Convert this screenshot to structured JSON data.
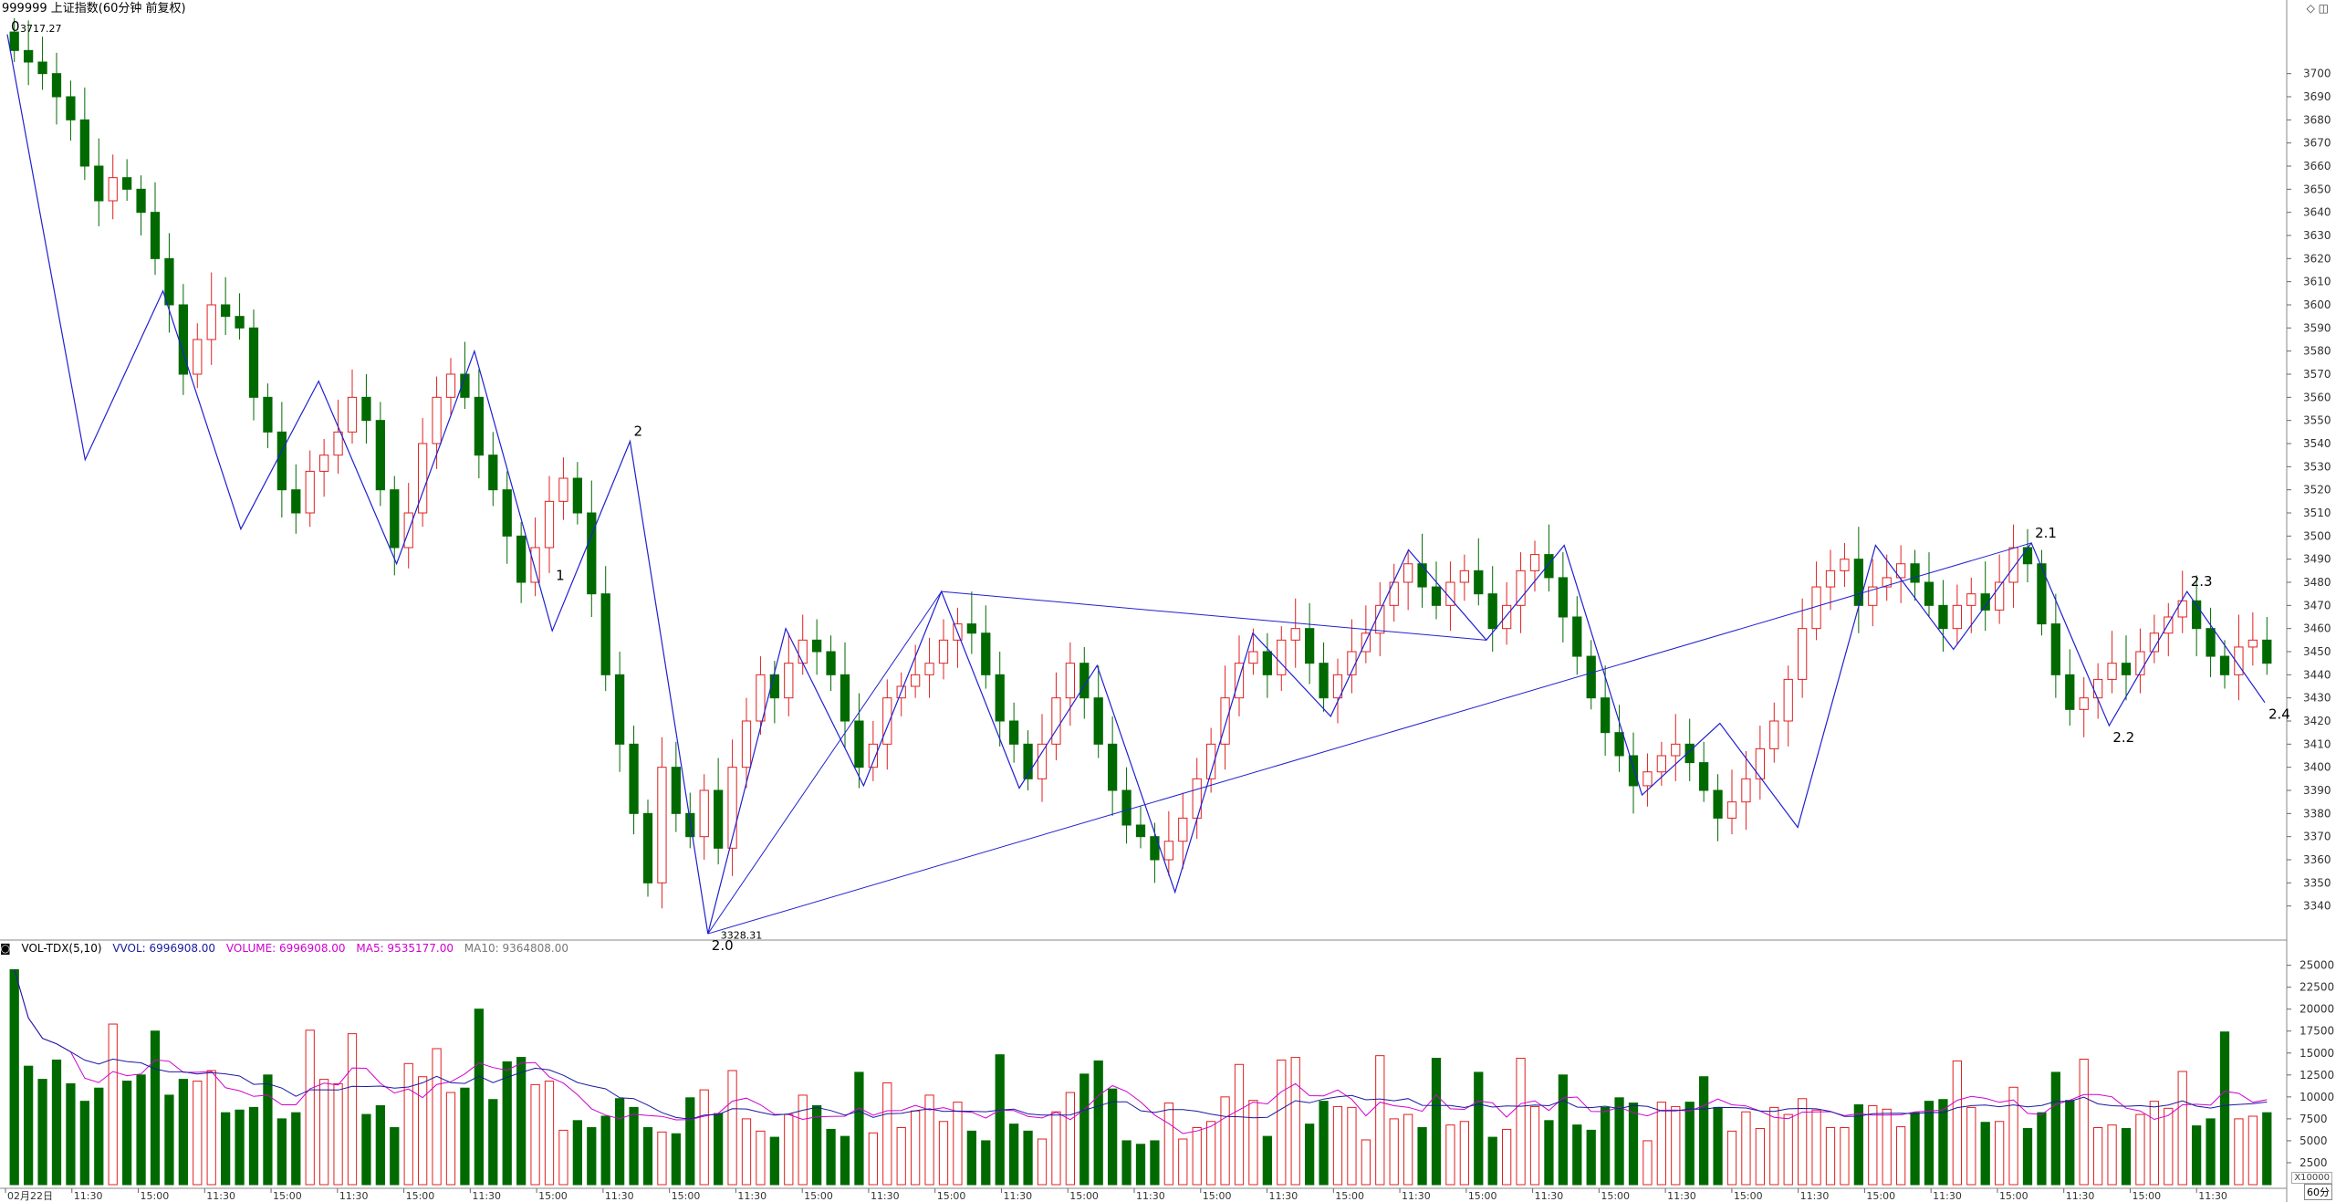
{
  "header": {
    "title": "999999 上证指数(60分钟 前复权)",
    "window_buttons": "◇ ◫"
  },
  "volume_panel": {
    "indicator": "VOL-TDX(5,10)",
    "vvol": "VVOL: 6996908.00",
    "volume": "VOLUME: 6996908.00",
    "ma5": "MA5: 9535177.00",
    "ma10": "MA10: 9364808.00",
    "scale_label": "X10000",
    "colors": {
      "vvol": "#1a1aa0",
      "volume": "#d000d0",
      "ma5": "#d000d0",
      "ma10": "#777777"
    }
  },
  "footer": {
    "period": "60分"
  },
  "colors": {
    "up": "#e02020",
    "down": "#006a00",
    "wave": "#2020d0",
    "box": "#cccccc"
  },
  "chart_data": [
    {
      "type": "candlestick",
      "title": "999999 上证指数(60分钟 前复权)",
      "ylim": [
        3330,
        3720
      ],
      "yticks": [
        3340,
        3350,
        3360,
        3370,
        3380,
        3390,
        3400,
        3410,
        3420,
        3430,
        3440,
        3450,
        3460,
        3470,
        3480,
        3490,
        3500,
        3510,
        3520,
        3530,
        3540,
        3550,
        3560,
        3570,
        3580,
        3590,
        3600,
        3610,
        3620,
        3630,
        3640,
        3650,
        3660,
        3670,
        3680,
        3690,
        3700
      ],
      "x_tick_labels": [
        "02月22日",
        "11:30",
        "15:00",
        "11:30",
        "15:00",
        "11:30",
        "15:00",
        "11:30",
        "15:00",
        "11:30",
        "15:00",
        "11:30",
        "15:00",
        "11:30",
        "15:00",
        "11:30",
        "15:00",
        "11:30",
        "15:00",
        "11:30",
        "15:00",
        "11:30",
        "15:00",
        "11:30",
        "15:00",
        "11:30",
        "15:00",
        "11:30",
        "15:00",
        "11:30",
        "15:00",
        "11:30",
        "15:00",
        "11:30"
      ],
      "annotations": [
        {
          "text": "3717.27",
          "price": 3717.27
        },
        {
          "text": "3328.31",
          "price": 3328.31
        }
      ],
      "wave_labels": [
        {
          "text": "0",
          "price": 3716
        },
        {
          "text": "1",
          "price": 3488
        },
        {
          "text": "2",
          "price": 3541
        },
        {
          "text": "2.0",
          "price": 3328
        },
        {
          "text": "2.1",
          "price": 3497
        },
        {
          "text": "2.2",
          "price": 3418
        },
        {
          "text": "2.3",
          "price": 3476
        },
        {
          "text": "2.4",
          "price": 3428
        }
      ],
      "wave_path": [
        3717,
        3533,
        3606,
        3503,
        3567,
        3488,
        3580,
        3459,
        3541,
        3328,
        3460,
        3392,
        3476,
        3391,
        3444,
        3346,
        3458,
        3422,
        3494,
        3455,
        3496,
        3388,
        3419,
        3374,
        3496,
        3451,
        3497,
        3418,
        3476,
        3428
      ],
      "closes": [
        3710,
        3705,
        3700,
        3690,
        3680,
        3660,
        3645,
        3655,
        3650,
        3640,
        3620,
        3600,
        3570,
        3585,
        3600,
        3595,
        3590,
        3560,
        3545,
        3520,
        3510,
        3528,
        3535,
        3545,
        3560,
        3550,
        3520,
        3495,
        3510,
        3540,
        3560,
        3570,
        3560,
        3535,
        3520,
        3500,
        3480,
        3495,
        3515,
        3525,
        3510,
        3475,
        3440,
        3410,
        3380,
        3350,
        3400,
        3380,
        3370,
        3390,
        3365,
        3400,
        3420,
        3440,
        3430,
        3445,
        3455,
        3450,
        3440,
        3420,
        3400,
        3410,
        3430,
        3435,
        3440,
        3445,
        3455,
        3462,
        3458,
        3440,
        3420,
        3410,
        3395,
        3410,
        3430,
        3445,
        3430,
        3410,
        3390,
        3375,
        3370,
        3360,
        3368,
        3378,
        3395,
        3410,
        3430,
        3445,
        3450,
        3440,
        3455,
        3460,
        3445,
        3430,
        3440,
        3450,
        3458,
        3470,
        3480,
        3488,
        3478,
        3470,
        3480,
        3485,
        3475,
        3460,
        3470,
        3485,
        3492,
        3482,
        3465,
        3448,
        3430,
        3415,
        3405,
        3392,
        3398,
        3405,
        3410,
        3402,
        3390,
        3378,
        3385,
        3395,
        3408,
        3420,
        3438,
        3460,
        3478,
        3485,
        3490,
        3470,
        3478,
        3482,
        3488,
        3480,
        3470,
        3460,
        3470,
        3475,
        3468,
        3480,
        3495,
        3488,
        3462,
        3440,
        3425,
        3430,
        3438,
        3445,
        3440,
        3450,
        3458,
        3465,
        3472,
        3460,
        3448,
        3440,
        3452,
        3455,
        3445
      ],
      "volumes": [
        24500,
        13500,
        12000,
        14200,
        11500,
        9500,
        11000,
        18300,
        11800,
        12500,
        17500,
        10200,
        12000,
        11800,
        13000,
        8200,
        8500,
        8800,
        12500,
        7500,
        8200,
        17600,
        12000,
        11500,
        17200,
        8000,
        9000,
        6500,
        13800,
        12300,
        15500,
        10500,
        11000,
        20000,
        9700,
        14000,
        14500,
        11400,
        11800,
        6200,
        7300,
        6500,
        7800,
        9800,
        8800,
        6500,
        6000,
        5800,
        9900,
        10800,
        8100,
        13000,
        7500,
        6100,
        5400,
        8000,
        10200,
        9000,
        6300,
        5500,
        12800,
        5900,
        11600,
        6500,
        8400,
        10200,
        7200,
        9400,
        6100,
        5000,
        14800,
        6900,
        6100,
        5200,
        8300,
        10500,
        12600,
        14100,
        10900,
        5000,
        4600,
        5000,
        9300,
        5200,
        6500,
        7200,
        10000,
        13700,
        9600,
        5500,
        14200,
        14500,
        6900,
        9500,
        8900,
        8800,
        5100,
        14700,
        7500,
        8000,
        6500,
        14400,
        6800,
        7200,
        12800,
        5400,
        6300,
        14400,
        8900,
        7300,
        12500,
        6800,
        6200,
        8800,
        9900,
        9300,
        5000,
        9400,
        8900,
        9400,
        12300,
        8800,
        6100,
        8300,
        6400,
        8800,
        8000,
        9800,
        8500,
        6500,
        6500,
        9100,
        9000,
        8600,
        6600,
        8200,
        9500,
        9700,
        14100,
        8800,
        7100,
        7200,
        11100,
        6400,
        8200,
        12800,
        9600,
        14300,
        6500,
        6800,
        6400,
        8000,
        9500,
        8700,
        12900,
        6700,
        7500,
        17400,
        7500,
        7800,
        8200,
        6900
      ],
      "ma5_vol_ylim": [
        0,
        26000
      ],
      "vol_yticks": [
        2500,
        5000,
        7500,
        10000,
        12500,
        15000,
        17500,
        20000,
        22500,
        25000
      ]
    }
  ]
}
